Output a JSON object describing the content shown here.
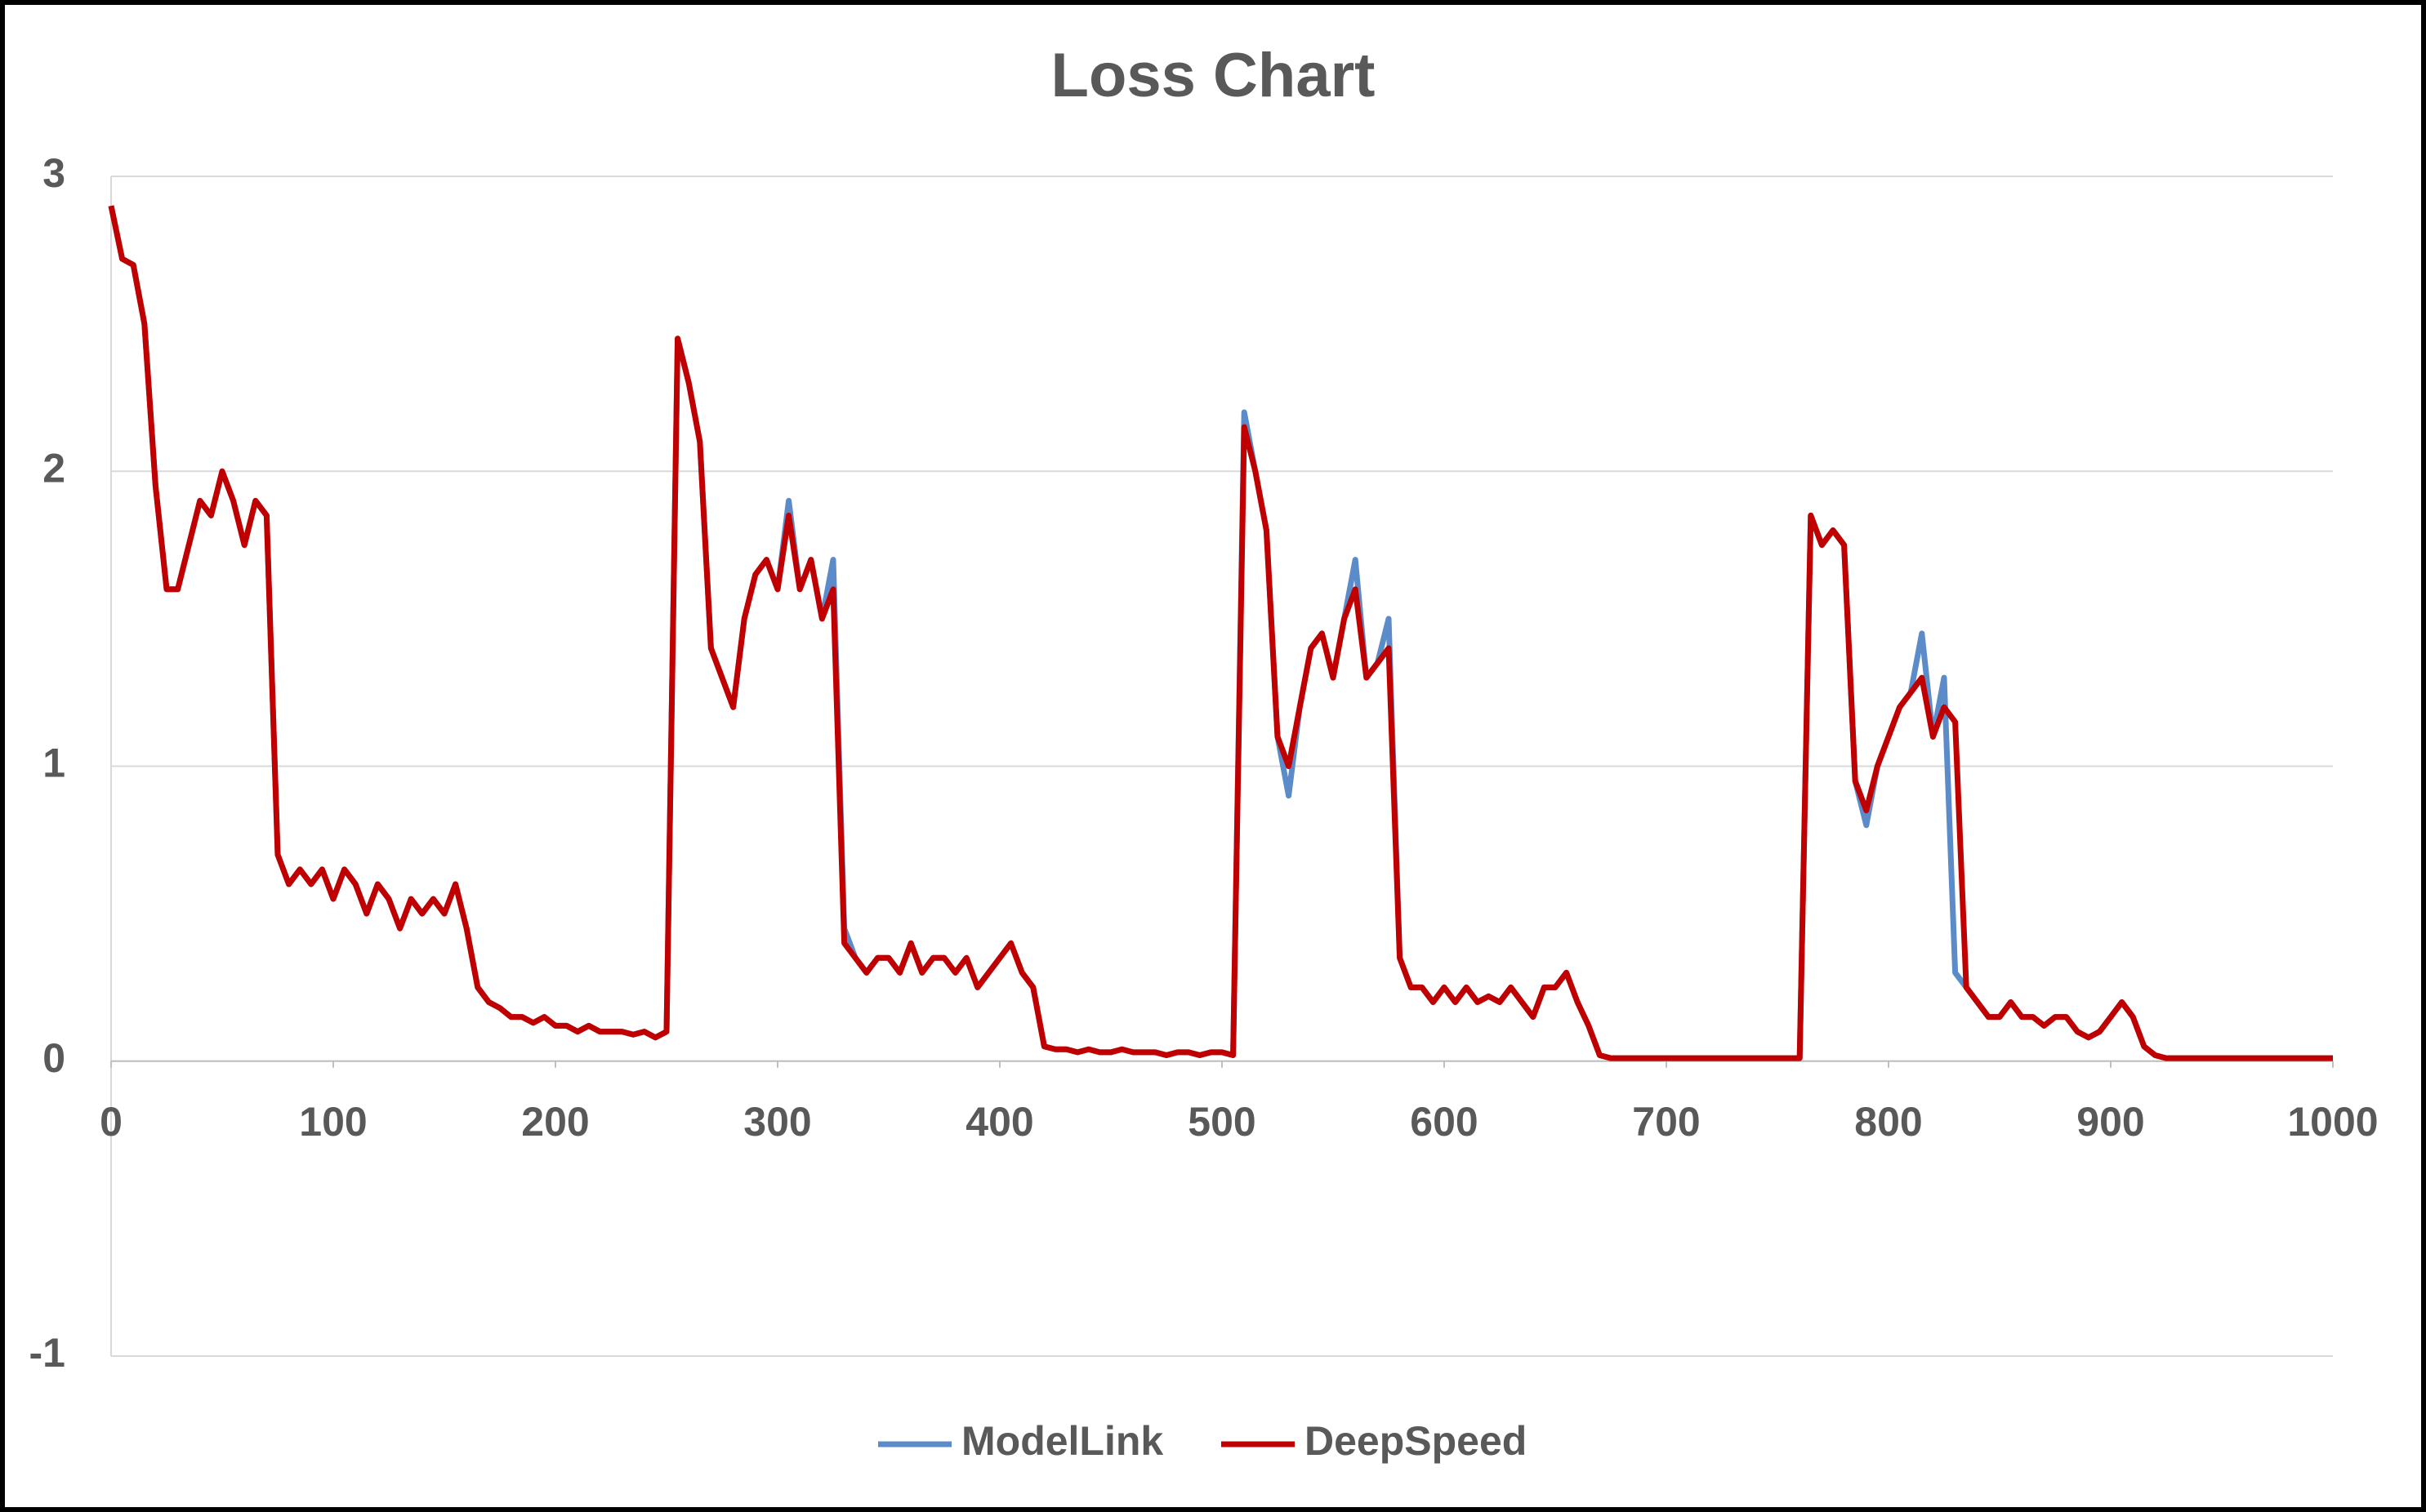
{
  "chart_data": {
    "type": "line",
    "title": "Loss Chart",
    "x": [
      0,
      5,
      10,
      15,
      20,
      25,
      30,
      35,
      40,
      45,
      50,
      55,
      60,
      65,
      70,
      75,
      80,
      85,
      90,
      95,
      100,
      105,
      110,
      115,
      120,
      125,
      130,
      135,
      140,
      145,
      150,
      155,
      160,
      165,
      170,
      175,
      180,
      185,
      190,
      195,
      200,
      205,
      210,
      215,
      220,
      225,
      230,
      235,
      240,
      245,
      250,
      255,
      260,
      265,
      270,
      275,
      280,
      285,
      290,
      295,
      300,
      305,
      310,
      315,
      320,
      325,
      330,
      335,
      340,
      345,
      350,
      355,
      360,
      365,
      370,
      375,
      380,
      385,
      390,
      395,
      400,
      405,
      410,
      415,
      420,
      425,
      430,
      435,
      440,
      445,
      450,
      455,
      460,
      465,
      470,
      475,
      480,
      485,
      490,
      495,
      500,
      505,
      510,
      515,
      520,
      525,
      530,
      535,
      540,
      545,
      550,
      555,
      560,
      565,
      570,
      575,
      580,
      585,
      590,
      595,
      600,
      605,
      610,
      615,
      620,
      625,
      630,
      635,
      640,
      645,
      650,
      655,
      660,
      665,
      670,
      675,
      680,
      685,
      690,
      695,
      700,
      705,
      710,
      715,
      720,
      725,
      730,
      735,
      740,
      745,
      750,
      755,
      760,
      765,
      770,
      775,
      780,
      785,
      790,
      795,
      800,
      805,
      810,
      815,
      820,
      825,
      830,
      835,
      840,
      845,
      850,
      855,
      860,
      865,
      870,
      875,
      880,
      885,
      890,
      895,
      900,
      905,
      910,
      915,
      920,
      925,
      930,
      935,
      940,
      945,
      950,
      955,
      960,
      965,
      970,
      975,
      980,
      985,
      990,
      995,
      1000
    ],
    "series": [
      {
        "name": "ModelLink",
        "color": "#5b8bc9",
        "values": [
          2.9,
          2.72,
          2.7,
          2.5,
          1.95,
          1.6,
          1.6,
          1.75,
          1.9,
          1.85,
          2.0,
          1.9,
          1.75,
          1.9,
          1.85,
          0.7,
          0.6,
          0.65,
          0.6,
          0.65,
          0.55,
          0.65,
          0.6,
          0.5,
          0.6,
          0.55,
          0.45,
          0.55,
          0.5,
          0.55,
          0.5,
          0.6,
          0.45,
          0.25,
          0.2,
          0.18,
          0.15,
          0.15,
          0.13,
          0.15,
          0.12,
          0.12,
          0.1,
          0.12,
          0.1,
          0.1,
          0.1,
          0.09,
          0.1,
          0.08,
          0.1,
          2.45,
          2.3,
          2.1,
          1.4,
          1.3,
          1.2,
          1.5,
          1.65,
          1.7,
          1.6,
          1.9,
          1.6,
          1.7,
          1.5,
          1.7,
          0.45,
          0.35,
          0.3,
          0.35,
          0.35,
          0.3,
          0.4,
          0.3,
          0.35,
          0.35,
          0.3,
          0.35,
          0.25,
          0.3,
          0.35,
          0.4,
          0.3,
          0.25,
          0.05,
          0.04,
          0.04,
          0.03,
          0.04,
          0.03,
          0.03,
          0.04,
          0.03,
          0.03,
          0.03,
          0.02,
          0.03,
          0.03,
          0.02,
          0.03,
          0.03,
          0.02,
          2.2,
          2.0,
          1.8,
          1.1,
          0.9,
          1.2,
          1.4,
          1.45,
          1.3,
          1.5,
          1.7,
          1.3,
          1.35,
          1.5,
          0.35,
          0.25,
          0.25,
          0.2,
          0.25,
          0.2,
          0.25,
          0.2,
          0.22,
          0.2,
          0.25,
          0.2,
          0.15,
          0.25,
          0.25,
          0.3,
          0.2,
          0.12,
          0.02,
          0.01,
          0.01,
          0.01,
          0.01,
          0.01,
          0.01,
          0.01,
          0.01,
          0.01,
          0.01,
          0.01,
          0.01,
          0.01,
          0.01,
          0.01,
          0.01,
          0.01,
          0.01,
          1.85,
          1.75,
          1.8,
          1.75,
          0.95,
          0.8,
          1.0,
          1.1,
          1.2,
          1.25,
          1.45,
          1.1,
          1.3,
          0.3,
          0.25,
          0.2,
          0.15,
          0.15,
          0.2,
          0.15,
          0.15,
          0.12,
          0.15,
          0.15,
          0.1,
          0.08,
          0.1,
          0.15,
          0.2,
          0.15,
          0.05,
          0.02,
          0.01,
          0.01,
          0.01,
          0.01,
          0.01,
          0.01,
          0.01,
          0.01,
          0.01,
          0.01,
          0.01,
          0.01,
          0.01,
          0.01,
          0.01,
          0.01
        ]
      },
      {
        "name": "DeepSpeed",
        "color": "#c00000",
        "values": [
          2.9,
          2.72,
          2.7,
          2.5,
          1.95,
          1.6,
          1.6,
          1.75,
          1.9,
          1.85,
          2.0,
          1.9,
          1.75,
          1.9,
          1.85,
          0.7,
          0.6,
          0.65,
          0.6,
          0.65,
          0.55,
          0.65,
          0.6,
          0.5,
          0.6,
          0.55,
          0.45,
          0.55,
          0.5,
          0.55,
          0.5,
          0.6,
          0.45,
          0.25,
          0.2,
          0.18,
          0.15,
          0.15,
          0.13,
          0.15,
          0.12,
          0.12,
          0.1,
          0.12,
          0.1,
          0.1,
          0.1,
          0.09,
          0.1,
          0.08,
          0.1,
          2.45,
          2.3,
          2.1,
          1.4,
          1.3,
          1.2,
          1.5,
          1.65,
          1.7,
          1.6,
          1.85,
          1.6,
          1.7,
          1.5,
          1.6,
          0.4,
          0.35,
          0.3,
          0.35,
          0.35,
          0.3,
          0.4,
          0.3,
          0.35,
          0.35,
          0.3,
          0.35,
          0.25,
          0.3,
          0.35,
          0.4,
          0.3,
          0.25,
          0.05,
          0.04,
          0.04,
          0.03,
          0.04,
          0.03,
          0.03,
          0.04,
          0.03,
          0.03,
          0.03,
          0.02,
          0.03,
          0.03,
          0.02,
          0.03,
          0.03,
          0.02,
          2.15,
          2.0,
          1.8,
          1.1,
          1.0,
          1.2,
          1.4,
          1.45,
          1.3,
          1.5,
          1.6,
          1.3,
          1.35,
          1.4,
          0.35,
          0.25,
          0.25,
          0.2,
          0.25,
          0.2,
          0.25,
          0.2,
          0.22,
          0.2,
          0.25,
          0.2,
          0.15,
          0.25,
          0.25,
          0.3,
          0.2,
          0.12,
          0.02,
          0.01,
          0.01,
          0.01,
          0.01,
          0.01,
          0.01,
          0.01,
          0.01,
          0.01,
          0.01,
          0.01,
          0.01,
          0.01,
          0.01,
          0.01,
          0.01,
          0.01,
          0.01,
          1.85,
          1.75,
          1.8,
          1.75,
          0.95,
          0.85,
          1.0,
          1.1,
          1.2,
          1.25,
          1.3,
          1.1,
          1.2,
          1.15,
          0.25,
          0.2,
          0.15,
          0.15,
          0.2,
          0.15,
          0.15,
          0.12,
          0.15,
          0.15,
          0.1,
          0.08,
          0.1,
          0.15,
          0.2,
          0.15,
          0.05,
          0.02,
          0.01,
          0.01,
          0.01,
          0.01,
          0.01,
          0.01,
          0.01,
          0.01,
          0.01,
          0.01,
          0.01,
          0.01,
          0.01,
          0.01,
          0.01,
          0.01
        ]
      }
    ],
    "xlim": [
      0,
      1000
    ],
    "xticks": [
      0,
      100,
      200,
      300,
      400,
      500,
      600,
      700,
      800,
      900,
      1000
    ],
    "ylim": [
      -1,
      3
    ],
    "yticks": [
      -1,
      0,
      1,
      2,
      3
    ],
    "grid": true,
    "legend": "bottom"
  }
}
